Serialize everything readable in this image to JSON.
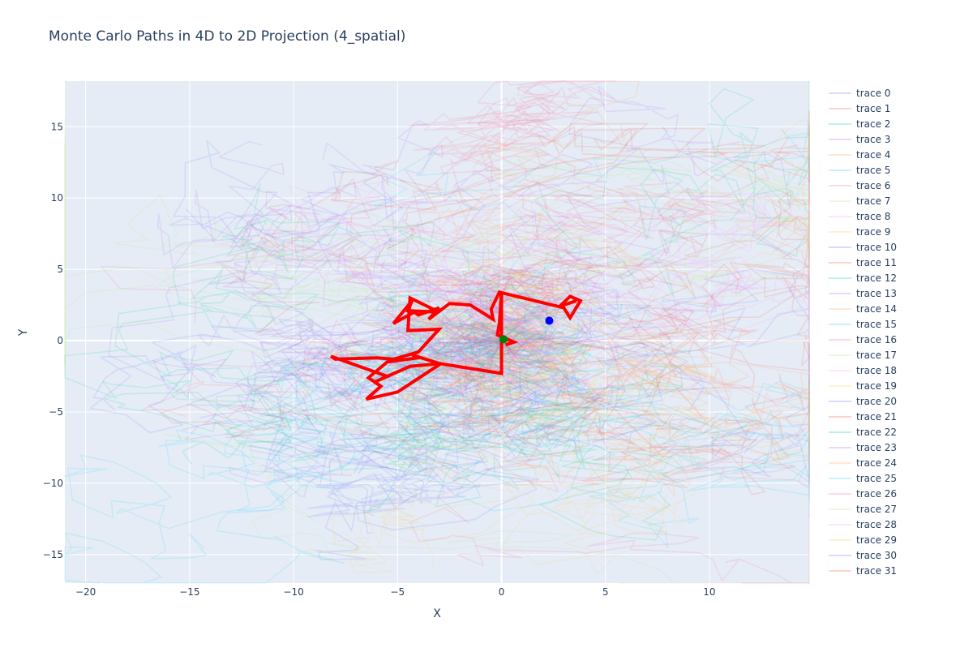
{
  "chart_data": {
    "type": "line",
    "title": "Monte Carlo Paths in 4D to 2D Projection (4_spatial)",
    "xlabel": "X",
    "ylabel": "Y",
    "xlim": [
      -21,
      14.8
    ],
    "ylim": [
      -17,
      18.2
    ],
    "xticks": [
      -20,
      -15,
      -10,
      -5,
      0,
      5,
      10
    ],
    "yticks": [
      -15,
      -10,
      -5,
      0,
      5,
      10,
      15
    ],
    "grid": true,
    "legend_position": "right",
    "colors": {
      "plot_bg": "#e5ecf6",
      "grid": "#ffffff",
      "highlight": "#ff0000",
      "start_marker": "#008000",
      "end_marker": "#0000ff",
      "palette": [
        "#636efa",
        "#ef553b",
        "#00cc96",
        "#ab63fa",
        "#ffa15a",
        "#19d3f3",
        "#ff6692",
        "#b6e880",
        "#ff97ff",
        "#fecb52"
      ]
    },
    "legend_entries": [
      "trace 0",
      "trace 1",
      "trace 2",
      "trace 3",
      "trace 4",
      "trace 5",
      "trace 6",
      "trace 7",
      "trace 8",
      "trace 9",
      "trace 10",
      "trace 11",
      "trace 12",
      "trace 13",
      "trace 14",
      "trace 15",
      "trace 16",
      "trace 17",
      "trace 18",
      "trace 19",
      "trace 20",
      "trace 21",
      "trace 22",
      "trace 23",
      "trace 24",
      "trace 25",
      "trace 26",
      "trace 27",
      "trace 28",
      "trace 29",
      "trace 30",
      "trace 31"
    ],
    "background_path_count": 32,
    "highlighted_path": {
      "x": [
        0.2,
        0.6,
        -0.2,
        -0.1,
        0.0,
        0.0,
        -3.0,
        -4.3,
        -4.0,
        -5.5,
        -6.4,
        -6.0,
        -5.8,
        -6.5,
        -5.0,
        -2.9,
        -4.4,
        -6.1,
        -5.5,
        -8.2,
        -8.0,
        -6.0,
        -5.2,
        -4.0,
        -3.0,
        -4.5,
        -4.4,
        -3.0,
        -4.5,
        -4.3,
        -5.2,
        -4.2,
        -4.0,
        -3.0,
        -3.5,
        -2.5,
        -1.5,
        -0.4,
        -0.5,
        -0.1,
        3.0,
        3.3,
        3.8,
        3.3,
        2.8,
        3.6
      ],
      "y": [
        -0.3,
        -0.1,
        0.4,
        1.2,
        3.4,
        -2.3,
        -1.6,
        -1.0,
        -1.2,
        -1.5,
        -2.6,
        -3.0,
        -3.2,
        -4.1,
        -3.6,
        -1.6,
        -1.8,
        -2.9,
        -2.5,
        -1.1,
        -1.3,
        -1.2,
        -1.3,
        -0.8,
        0.8,
        0.7,
        3.0,
        2.0,
        2.1,
        2.8,
        1.2,
        2.0,
        1.8,
        2.3,
        1.5,
        2.6,
        2.5,
        1.5,
        2.2,
        3.4,
        2.3,
        1.6,
        2.8,
        3.1,
        2.4,
        2.8
      ]
    },
    "start_point": {
      "x": 0.1,
      "y": 0.1
    },
    "end_point": {
      "x": 2.3,
      "y": 1.4
    }
  }
}
